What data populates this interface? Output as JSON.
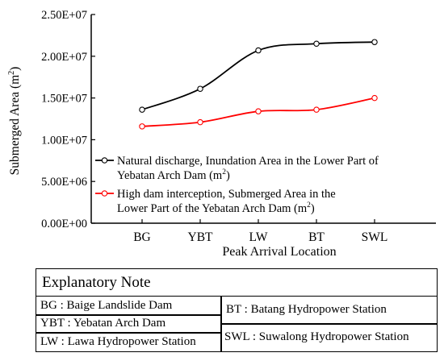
{
  "chart_data": {
    "type": "line",
    "ylabel": "Submerged Area (m²)",
    "ylabel_main": "Submerged Area (m",
    "ylabel_sup": "2",
    "ylabel_end": ")",
    "xlabel": "Peak Arrival Location",
    "categories": [
      "BG",
      "YBT",
      "LW",
      "BT",
      "SWL"
    ],
    "ylim": [
      0,
      25000000
    ],
    "yticks": [
      0,
      5000000,
      10000000,
      15000000,
      20000000,
      25000000
    ],
    "ytick_labels": [
      "0.00E+00",
      "5.00E+06",
      "1.00E+07",
      "1.50E+07",
      "2.00E+07",
      "2.50E+07"
    ],
    "grid": false,
    "legend_position": "lower-right",
    "series": [
      {
        "name": "Natural discharge, Inundation Area in the Lower Part of Yebatan Arch Dam (m²)",
        "legend_line1": "Natural discharge, Inundation Area in the Lower Part of",
        "legend_line2": "Yebatan Arch Dam (m",
        "legend_sup": "2",
        "legend_end": ")",
        "color": "#000000",
        "values": [
          13600000,
          16100000,
          20700000,
          21500000,
          21700000
        ]
      },
      {
        "name": "High dam interception, Submerged Area in the Lower Part of the Yebatan Arch Dam (m²)",
        "legend_line1": "High dam interception, Submerged Area in the",
        "legend_line2": "Lower Part of the Yebatan Arch Dam (m",
        "legend_sup": "2",
        "legend_end": ")",
        "color": "#ff0000",
        "values": [
          11600000,
          12100000,
          13400000,
          13600000,
          15000000
        ]
      }
    ]
  },
  "note": {
    "title": "Explanatory Note",
    "items": {
      "bg": "BG : Baige Landslide Dam",
      "ybt": "YBT : Yebatan Arch Dam",
      "lw": "LW : Lawa Hydropower Station",
      "bt": "BT : Batang Hydropower Station",
      "swl": "SWL : Suwalong Hydropower Station"
    }
  }
}
